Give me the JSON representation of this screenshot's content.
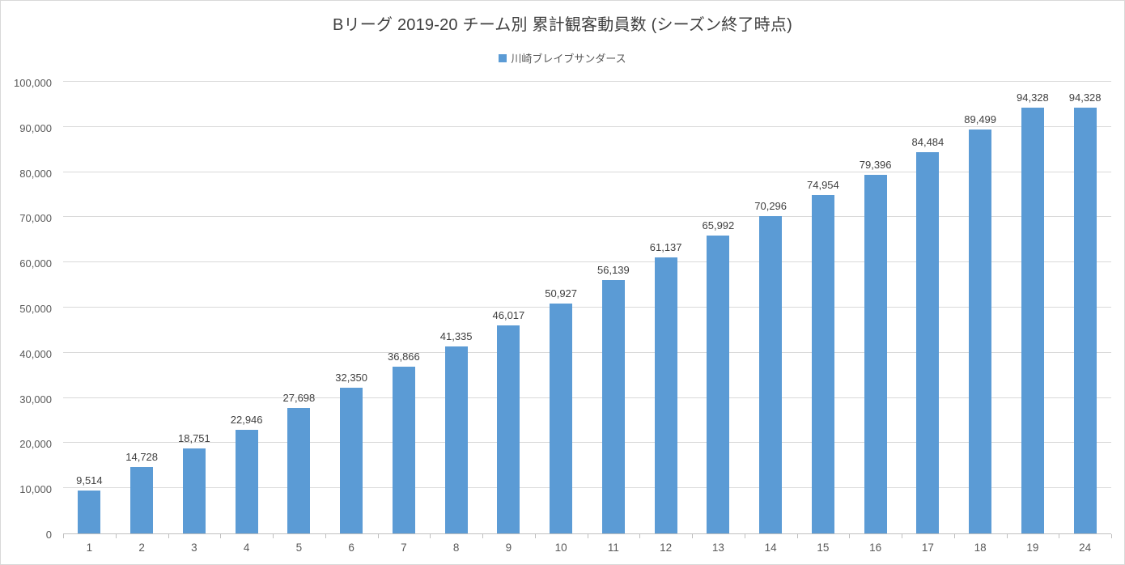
{
  "chart_data": {
    "type": "bar",
    "title": "Bリーグ 2019-20 チーム別 累計観客動員数 (シーズン終了時点)",
    "legend_entries": [
      "川崎ブレイブサンダース"
    ],
    "legend_position": "top",
    "categories": [
      "1",
      "2",
      "3",
      "4",
      "5",
      "6",
      "7",
      "8",
      "9",
      "10",
      "11",
      "12",
      "13",
      "14",
      "15",
      "16",
      "17",
      "18",
      "19",
      "24"
    ],
    "series": [
      {
        "name": "川崎ブレイブサンダース",
        "values": [
          9514,
          14728,
          18751,
          22946,
          27698,
          32350,
          36866,
          41335,
          46017,
          50927,
          56139,
          61137,
          65992,
          70296,
          74954,
          79396,
          84484,
          89499,
          94328,
          94328
        ]
      }
    ],
    "xlabel": "",
    "ylabel": "",
    "ylim": [
      0,
      100000
    ],
    "ytick_interval": 10000,
    "grid": true,
    "data_labels_on": true,
    "colors": {
      "bar": "#5b9bd5",
      "title_text": "#404040",
      "data_label_text": "#404040",
      "axis_text": "#595959",
      "gridline": "#d9d9d9",
      "axis_line": "#bfbfbf"
    }
  }
}
